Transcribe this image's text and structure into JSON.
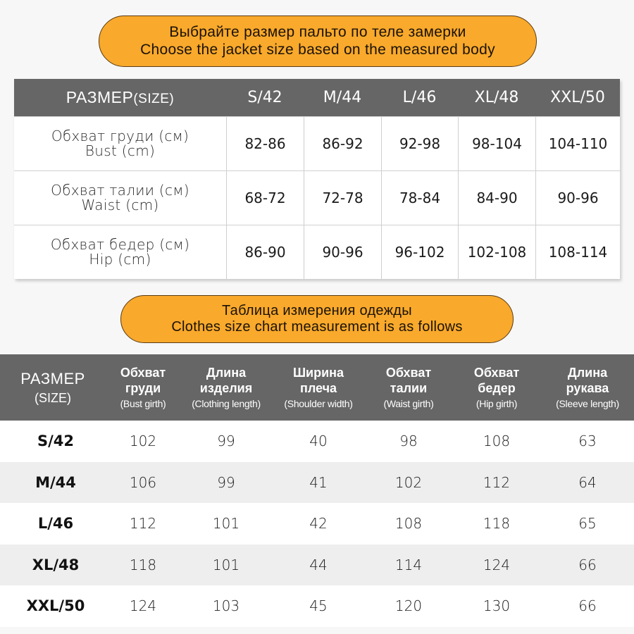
{
  "banner_top": {
    "line_ru": "Выбрайте размер пальто по теле замерки",
    "line_en": "Choose the jacket size based on the measured body"
  },
  "body_table": {
    "header": {
      "label_ru": "РАЗМЕР",
      "label_en": "(SIZE)",
      "sizes": [
        "S/42",
        "M/44",
        "L/46",
        "XL/48",
        "XXL/50"
      ]
    },
    "rows": [
      {
        "label_ru": "Обхват груди (см)",
        "label_en": "Bust (cm)",
        "values": [
          "82-86",
          "86-92",
          "92-98",
          "98-104",
          "104-110"
        ]
      },
      {
        "label_ru": "Обхват талии (см)",
        "label_en": "Waist (cm)",
        "values": [
          "68-72",
          "72-78",
          "78-84",
          "84-90",
          "90-96"
        ]
      },
      {
        "label_ru": "Обхват бедер (см)",
        "label_en": "Hip (cm)",
        "values": [
          "86-90",
          "90-96",
          "96-102",
          "102-108",
          "108-114"
        ]
      }
    ]
  },
  "banner_bottom": {
    "line_ru": "Таблица измерения одежды",
    "line_en": "Clothes size chart measurement is as follows"
  },
  "garment_table": {
    "header": {
      "size_ru": "РАЗМЕР",
      "size_en": "(SIZE)",
      "columns": [
        {
          "ru1": "Обхват",
          "ru2": "груди",
          "en": "(Bust girth)"
        },
        {
          "ru1": "Длина",
          "ru2": "изделия",
          "en": "(Clothing length)"
        },
        {
          "ru1": "Ширина",
          "ru2": "плеча",
          "en": "(Shoulder width)"
        },
        {
          "ru1": "Обхват",
          "ru2": "талии",
          "en": "(Waist girth)"
        },
        {
          "ru1": "Обхват",
          "ru2": "бедер",
          "en": "(Hip girth)"
        },
        {
          "ru1": "Длина",
          "ru2": "рукава",
          "en": "(Sleeve length)"
        }
      ]
    },
    "rows": [
      {
        "size": "S/42",
        "values": [
          "102",
          "99",
          "40",
          "98",
          "108",
          "63"
        ]
      },
      {
        "size": "M/44",
        "values": [
          "106",
          "99",
          "41",
          "102",
          "112",
          "64"
        ]
      },
      {
        "size": "L/46",
        "values": [
          "112",
          "101",
          "42",
          "108",
          "118",
          "65"
        ]
      },
      {
        "size": "XL/48",
        "values": [
          "118",
          "101",
          "44",
          "114",
          "124",
          "66"
        ]
      },
      {
        "size": "XXL/50",
        "values": [
          "124",
          "103",
          "45",
          "120",
          "130",
          "66"
        ]
      }
    ]
  },
  "colors": {
    "banner_fill": "#f9a92b",
    "banner_border": "#5a3a12",
    "header_bg": "#666666",
    "row_alt_bg": "#eeeeee",
    "page_bg": "#f7f7f7"
  }
}
